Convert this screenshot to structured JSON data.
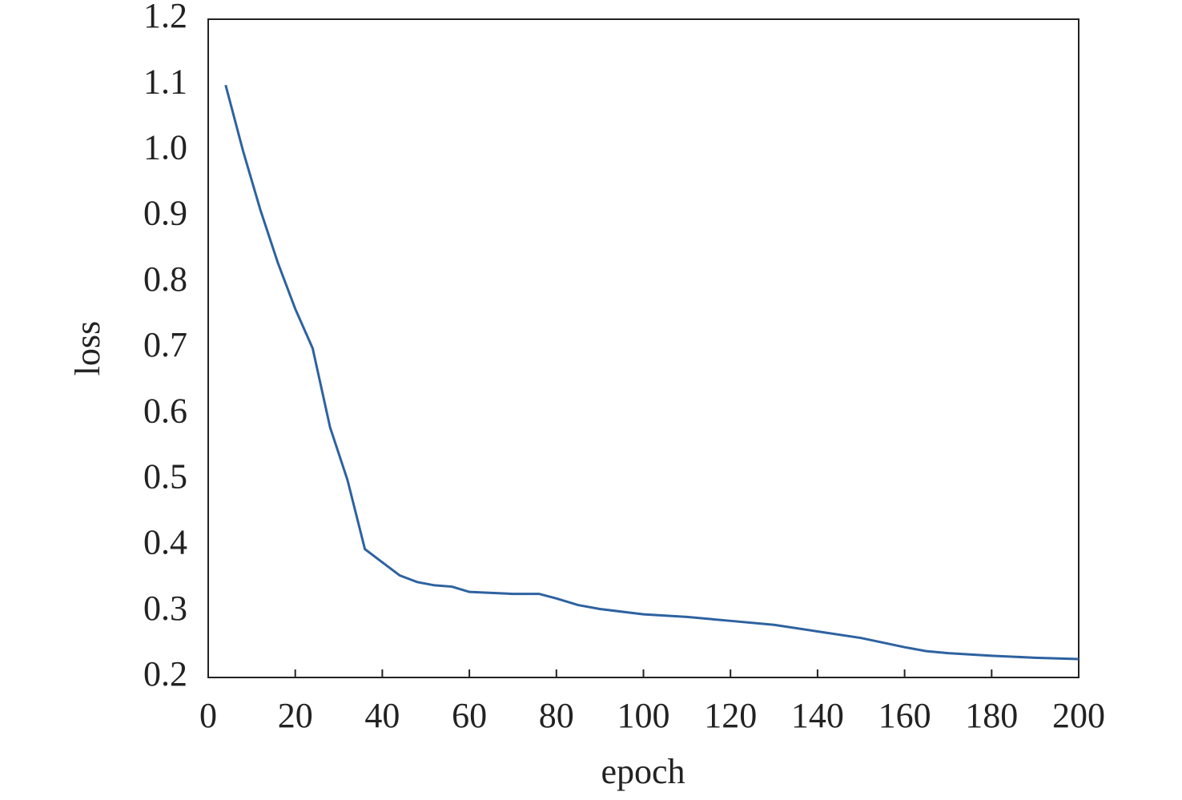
{
  "chart_data": {
    "type": "line",
    "x_label": "epoch",
    "y_label": "loss",
    "series": [
      {
        "color": "#2d62a0",
        "x": [
          4,
          8,
          12,
          16,
          20,
          24,
          28,
          32,
          36,
          40,
          44,
          48,
          52,
          56,
          60,
          70,
          76,
          80,
          85,
          90,
          100,
          110,
          120,
          130,
          140,
          150,
          160,
          165,
          170,
          180,
          190,
          200
        ],
        "values": [
          1.1,
          1.0,
          0.91,
          0.83,
          0.76,
          0.7,
          0.58,
          0.5,
          0.395,
          0.375,
          0.355,
          0.345,
          0.34,
          0.338,
          0.33,
          0.327,
          0.327,
          0.32,
          0.31,
          0.304,
          0.296,
          0.292,
          0.286,
          0.28,
          0.27,
          0.26,
          0.246,
          0.24,
          0.237,
          0.233,
          0.23,
          0.228
        ]
      }
    ],
    "xlim": [
      0,
      200
    ],
    "xticks": [
      0,
      20,
      40,
      60,
      80,
      100,
      120,
      140,
      160,
      180,
      200
    ],
    "ylim": [
      0.2,
      1.2
    ],
    "yticks": [
      0.2,
      0.3,
      0.4,
      0.5,
      0.6,
      0.7,
      0.8,
      0.9,
      {
        "value": 1,
        "label": "1.0"
      },
      1.1,
      1.2
    ]
  }
}
